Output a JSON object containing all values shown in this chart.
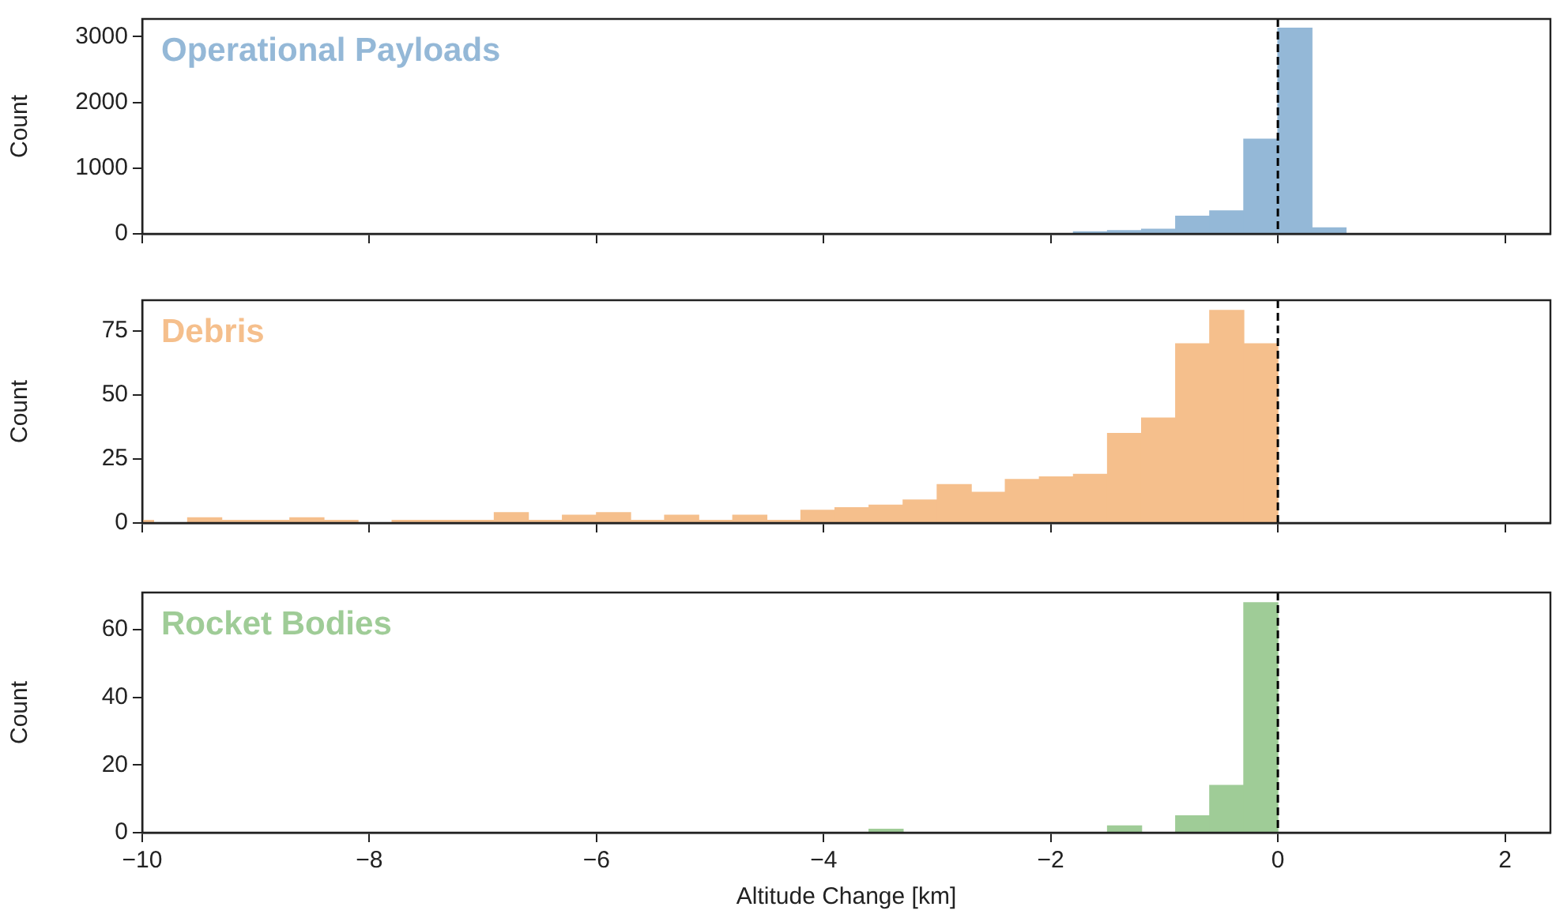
{
  "chart_data": [
    {
      "type": "histogram",
      "bins": [
        -1.8,
        -1.5,
        -1.2,
        -0.9,
        -0.6,
        -0.3,
        0,
        0.3,
        0.6
      ],
      "series": [
        {
          "name": "Operational Payloads",
          "color": "#94b8d7",
          "values": [
            30,
            50,
            70,
            270,
            350,
            1440,
            3130,
            90
          ]
        }
      ],
      "ylabel": "Count",
      "xlim": [
        -10,
        2.4
      ],
      "ylim": [
        0,
        3270
      ],
      "xticks": [
        {
          "value": -10,
          "label": null
        },
        {
          "value": -8,
          "label": null
        },
        {
          "value": -6,
          "label": null
        },
        {
          "value": -4,
          "label": null
        },
        {
          "value": -2,
          "label": null
        },
        {
          "value": 0,
          "label": null
        },
        {
          "value": 2,
          "label": null
        }
      ],
      "yticks": [
        0,
        1000,
        2000,
        3000
      ],
      "tick_labels": "y",
      "ref_lines": [
        {
          "axis": "x",
          "value": 0,
          "color": "#000000",
          "line_style": "dashed"
        }
      ],
      "legend": false
    },
    {
      "type": "histogram",
      "bins": [
        -10,
        -9.9,
        -9.6,
        -9.3,
        -9,
        -8.7,
        -8.4,
        -8.1,
        -7.8,
        -7.5,
        -7.2,
        -6.9,
        -6.6,
        -6.3,
        -6,
        -5.7,
        -5.4,
        -5.1,
        -4.8,
        -4.5,
        -4.2,
        -3.9,
        -3.6,
        -3.3,
        -3,
        -2.7,
        -2.4,
        -2.1,
        -1.8,
        -1.5,
        -1.2,
        -0.9,
        -0.6,
        -0.3,
        0
      ],
      "series": [
        {
          "name": "Debris",
          "color": "#f5bf8c",
          "values": [
            1,
            0,
            2,
            1,
            1,
            2,
            1,
            0,
            1,
            1,
            1,
            4,
            1,
            3,
            4,
            1,
            3,
            1,
            3,
            1,
            5,
            6,
            7,
            9,
            15,
            12,
            17,
            18,
            19,
            35,
            41,
            70,
            83,
            70
          ]
        }
      ],
      "ylabel": "Count",
      "xlim": [
        -10,
        2.4
      ],
      "ylim": [
        0,
        87
      ],
      "xticks": [
        {
          "value": -10,
          "label": null
        },
        {
          "value": -8,
          "label": null
        },
        {
          "value": -6,
          "label": null
        },
        {
          "value": -4,
          "label": null
        },
        {
          "value": -2,
          "label": null
        },
        {
          "value": 0,
          "label": null
        },
        {
          "value": 2,
          "label": null
        }
      ],
      "yticks": [
        0,
        25,
        50,
        75
      ],
      "tick_labels": "y",
      "ref_lines": [
        {
          "axis": "x",
          "value": 0,
          "color": "#000000",
          "line_style": "dashed"
        }
      ],
      "legend": false
    },
    {
      "type": "histogram",
      "bins": [
        -3.6,
        -3.3,
        -3,
        -2.7,
        -2.4,
        -2.1,
        -1.8,
        -1.5,
        -1.2,
        -0.9,
        -0.6,
        -0.3,
        0
      ],
      "series": [
        {
          "name": "Rocket Bodies",
          "color": "#9fcc97",
          "values": [
            1,
            0,
            0,
            0,
            0,
            0,
            0,
            2,
            0,
            5,
            14,
            68
          ]
        }
      ],
      "xlabel": "Altitude Change [km]",
      "ylabel": "Count",
      "xlim": [
        -10,
        2.4
      ],
      "ylim": [
        0,
        71
      ],
      "xticks": [
        {
          "value": -10,
          "label": "−10"
        },
        {
          "value": -8,
          "label": "−8"
        },
        {
          "value": -6,
          "label": "−6"
        },
        {
          "value": -4,
          "label": "−4"
        },
        {
          "value": -2,
          "label": "−2"
        },
        0,
        2
      ],
      "yticks": [
        0,
        20,
        40,
        60
      ],
      "ref_lines": [
        {
          "axis": "x",
          "value": 0,
          "color": "#000000",
          "line_style": "dashed"
        }
      ],
      "legend": false
    }
  ]
}
